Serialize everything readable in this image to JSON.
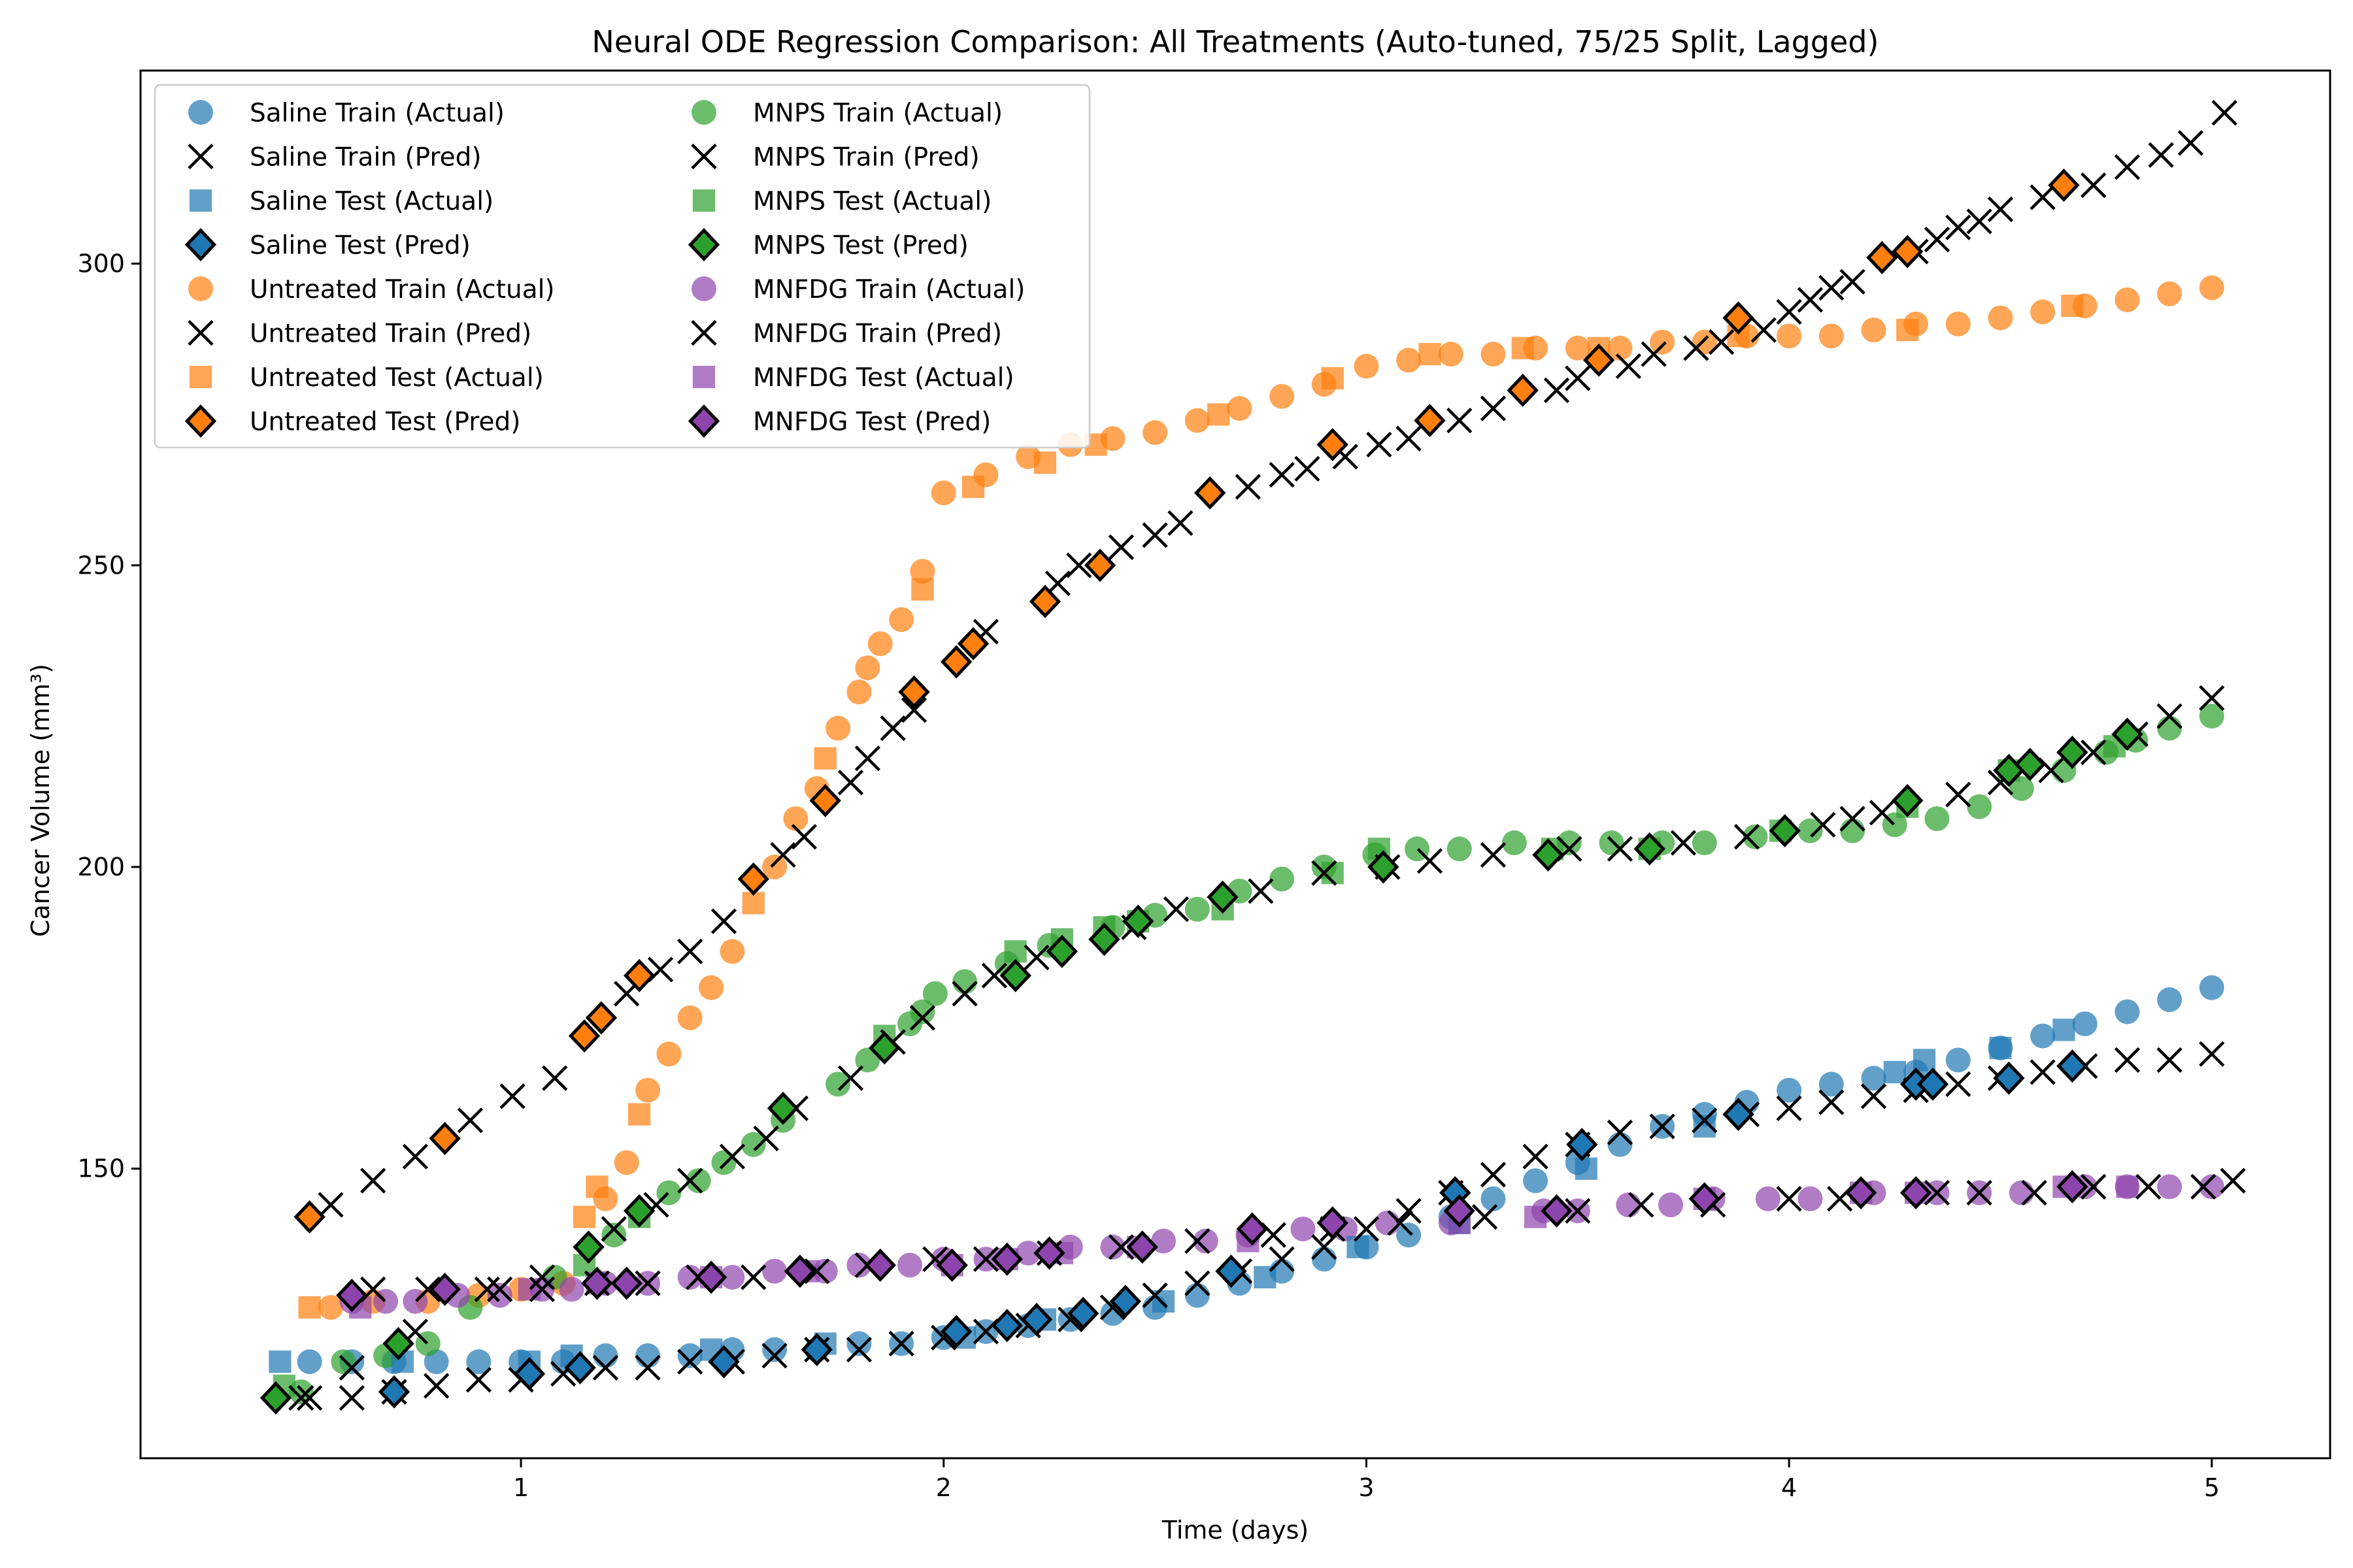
{
  "chart_data": {
    "type": "scatter",
    "title": "Neural ODE Regression Comparison: All Treatments (Auto-tuned, 75/25 Split, Lagged)",
    "xlabel": "Time (days)",
    "ylabel": "Cancer Volume (mm³)",
    "xlim": [
      0.1,
      5.28
    ],
    "ylim": [
      102,
      332
    ],
    "xticks": [
      1,
      2,
      3,
      4,
      5
    ],
    "yticks": [
      150,
      200,
      250,
      300
    ],
    "grid": false,
    "legend_location": "top-left",
    "legend_columns": 2,
    "colors": {
      "saline": "#1f77b4",
      "untreated": "#ff7f0e",
      "mnps": "#2ca02c",
      "mnfdg": "#8e44ad",
      "pred_cross": "#000000"
    },
    "series": [
      {
        "name": "Saline Train (Actual)",
        "group": "saline",
        "marker": "circle",
        "x": [
          0.5,
          0.6,
          0.7,
          0.8,
          0.9,
          1.0,
          1.1,
          1.2,
          1.3,
          1.4,
          1.5,
          1.6,
          1.7,
          1.8,
          1.9,
          2.0,
          2.1,
          2.2,
          2.3,
          2.4,
          2.5,
          2.6,
          2.7,
          2.8,
          2.9,
          3.0,
          3.1,
          3.2,
          3.3,
          3.4,
          3.5,
          3.6,
          3.7,
          3.8,
          3.9,
          4.0,
          4.1,
          4.2,
          4.3,
          4.4,
          4.5,
          4.6,
          4.7,
          4.8,
          4.9,
          5.0
        ],
        "y": [
          118,
          118,
          118,
          118,
          118,
          118,
          118,
          119,
          119,
          119,
          120,
          120,
          120,
          121,
          121,
          122,
          123,
          124,
          125,
          126,
          127,
          129,
          131,
          133,
          135,
          137,
          139,
          142,
          145,
          148,
          151,
          154,
          157,
          159,
          161,
          163,
          164,
          165,
          166,
          168,
          170,
          172,
          174,
          176,
          178,
          180
        ]
      },
      {
        "name": "Saline Train (Pred)",
        "group": "saline",
        "marker": "x",
        "x": [
          0.5,
          0.6,
          0.7,
          0.8,
          0.9,
          1.0,
          1.1,
          1.2,
          1.3,
          1.4,
          1.5,
          1.6,
          1.7,
          1.8,
          1.9,
          2.0,
          2.1,
          2.2,
          2.3,
          2.4,
          2.5,
          2.6,
          2.7,
          2.8,
          2.9,
          3.0,
          3.1,
          3.2,
          3.3,
          3.4,
          3.5,
          3.6,
          3.7,
          3.8,
          3.9,
          4.0,
          4.1,
          4.2,
          4.3,
          4.4,
          4.5,
          4.6,
          4.7,
          4.8,
          4.9,
          5.0
        ],
        "y": [
          112,
          112,
          113,
          114,
          115,
          115,
          116,
          117,
          117,
          118,
          118,
          119,
          120,
          120,
          121,
          122,
          123,
          124,
          125,
          127,
          129,
          131,
          133,
          135,
          137,
          140,
          143,
          146,
          149,
          152,
          154,
          156,
          157,
          158,
          159,
          160,
          161,
          162,
          163,
          164,
          165,
          166,
          167,
          168,
          168,
          169
        ]
      },
      {
        "name": "Saline Test (Actual)",
        "group": "saline",
        "marker": "square",
        "x": [
          0.43,
          0.72,
          1.02,
          1.12,
          1.45,
          1.72,
          2.05,
          2.24,
          2.52,
          2.76,
          2.98,
          3.22,
          3.52,
          3.8,
          4.25,
          4.32,
          4.5,
          4.65
        ],
        "y": [
          118,
          118,
          118,
          119,
          120,
          121,
          122,
          125,
          128,
          132,
          137,
          141,
          150,
          157,
          166,
          168,
          170,
          173
        ]
      },
      {
        "name": "Saline Test (Pred)",
        "group": "saline",
        "marker": "diamond",
        "x": [
          0.7,
          1.02,
          1.14,
          1.48,
          1.7,
          2.03,
          2.15,
          2.22,
          2.33,
          2.43,
          2.68,
          3.21,
          3.51,
          3.88,
          4.3,
          4.34,
          4.52,
          4.67
        ],
        "y": [
          113,
          116,
          117,
          118,
          120,
          123,
          124,
          125,
          126,
          128,
          133,
          146,
          154,
          159,
          164,
          164,
          165,
          167
        ]
      },
      {
        "name": "Untreated Train (Actual)",
        "group": "untreated",
        "marker": "circle",
        "x": [
          0.55,
          0.65,
          0.78,
          0.9,
          1.0,
          1.1,
          1.2,
          1.25,
          1.3,
          1.35,
          1.4,
          1.45,
          1.5,
          1.6,
          1.65,
          1.7,
          1.75,
          1.8,
          1.82,
          1.85,
          1.9,
          1.95,
          2.0,
          2.1,
          2.2,
          2.3,
          2.4,
          2.5,
          2.6,
          2.7,
          2.8,
          2.9,
          3.0,
          3.1,
          3.2,
          3.3,
          3.4,
          3.5,
          3.6,
          3.7,
          3.8,
          3.9,
          4.0,
          4.1,
          4.2,
          4.3,
          4.4,
          4.5,
          4.6,
          4.7,
          4.8,
          4.9,
          5.0
        ],
        "y": [
          127,
          128,
          128,
          129,
          130,
          131,
          145,
          151,
          163,
          169,
          175,
          180,
          186,
          200,
          208,
          213,
          223,
          229,
          233,
          237,
          241,
          249,
          262,
          265,
          268,
          270,
          271,
          272,
          274,
          276,
          278,
          280,
          283,
          284,
          285,
          285,
          286,
          286,
          286,
          287,
          287,
          288,
          288,
          288,
          289,
          290,
          290,
          291,
          292,
          293,
          294,
          295,
          296
        ]
      },
      {
        "name": "Untreated Train (Pred)",
        "group": "untreated",
        "marker": "x",
        "x": [
          0.55,
          0.65,
          0.75,
          0.88,
          0.98,
          1.08,
          1.25,
          1.33,
          1.4,
          1.48,
          1.62,
          1.67,
          1.78,
          1.82,
          1.88,
          1.93,
          2.1,
          2.27,
          2.32,
          2.42,
          2.5,
          2.56,
          2.72,
          2.8,
          2.86,
          2.95,
          3.03,
          3.1,
          3.22,
          3.3,
          3.45,
          3.5,
          3.62,
          3.68,
          3.78,
          3.84,
          3.94,
          4.0,
          4.05,
          4.1,
          4.15,
          4.3,
          4.35,
          4.4,
          4.45,
          4.5,
          4.6,
          4.72,
          4.8,
          4.88,
          4.95,
          5.03
        ],
        "y": [
          144,
          148,
          152,
          158,
          162,
          165,
          179,
          183,
          186,
          191,
          202,
          205,
          214,
          218,
          223,
          226,
          239,
          247,
          250,
          253,
          255,
          257,
          263,
          265,
          266,
          268,
          270,
          271,
          274,
          276,
          279,
          281,
          283,
          285,
          286,
          287,
          289,
          292,
          294,
          296,
          297,
          302,
          304,
          306,
          307,
          309,
          311,
          313,
          316,
          318,
          320,
          325
        ]
      },
      {
        "name": "Untreated Test (Actual)",
        "group": "untreated",
        "marker": "square",
        "x": [
          0.5,
          1.15,
          1.18,
          1.28,
          1.55,
          1.72,
          1.95,
          2.07,
          2.24,
          2.36,
          2.65,
          2.92,
          3.15,
          3.37,
          3.55,
          3.88,
          4.28,
          4.67
        ],
        "y": [
          127,
          142,
          147,
          159,
          194,
          218,
          246,
          263,
          267,
          270,
          275,
          281,
          285,
          286,
          286,
          288,
          289,
          293
        ]
      },
      {
        "name": "Untreated Test (Pred)",
        "group": "untreated",
        "marker": "diamond",
        "x": [
          0.5,
          0.82,
          1.15,
          1.19,
          1.28,
          1.55,
          1.72,
          1.93,
          2.03,
          2.07,
          2.24,
          2.37,
          2.63,
          2.92,
          3.15,
          3.37,
          3.55,
          3.88,
          4.22,
          4.28,
          4.65
        ],
        "y": [
          142,
          155,
          172,
          175,
          182,
          198,
          211,
          229,
          234,
          237,
          244,
          250,
          262,
          270,
          274,
          279,
          284,
          291,
          301,
          302,
          313
        ]
      },
      {
        "name": "MNPS Train (Actual)",
        "group": "mnps",
        "marker": "circle",
        "x": [
          0.48,
          0.58,
          0.68,
          0.78,
          0.88,
          1.08,
          1.22,
          1.35,
          1.42,
          1.48,
          1.55,
          1.62,
          1.75,
          1.82,
          1.92,
          1.95,
          1.98,
          2.05,
          2.15,
          2.25,
          2.4,
          2.5,
          2.6,
          2.7,
          2.8,
          2.9,
          3.02,
          3.12,
          3.22,
          3.35,
          3.48,
          3.58,
          3.7,
          3.8,
          3.92,
          4.05,
          4.15,
          4.25,
          4.35,
          4.45,
          4.55,
          4.65,
          4.75,
          4.82,
          4.9,
          5.0
        ],
        "y": [
          113,
          118,
          119,
          121,
          127,
          132,
          139,
          146,
          148,
          151,
          154,
          158,
          164,
          168,
          174,
          176,
          179,
          181,
          184,
          187,
          190,
          192,
          193,
          196,
          198,
          200,
          202,
          203,
          203,
          204,
          204,
          204,
          204,
          204,
          205,
          206,
          206,
          207,
          208,
          210,
          213,
          216,
          219,
          221,
          223,
          225
        ]
      },
      {
        "name": "MNPS Train (Pred)",
        "group": "mnps",
        "marker": "x",
        "x": [
          0.48,
          0.6,
          0.75,
          0.95,
          1.05,
          1.22,
          1.32,
          1.4,
          1.5,
          1.58,
          1.65,
          1.78,
          1.88,
          1.95,
          2.05,
          2.12,
          2.22,
          2.45,
          2.55,
          2.75,
          2.9,
          3.05,
          3.15,
          3.3,
          3.48,
          3.6,
          3.75,
          3.9,
          4.08,
          4.15,
          4.22,
          4.4,
          4.5,
          4.62,
          4.72,
          4.82,
          4.9,
          5.0
        ],
        "y": [
          112,
          117,
          123,
          130,
          132,
          140,
          144,
          148,
          152,
          155,
          160,
          165,
          171,
          175,
          179,
          182,
          185,
          190,
          193,
          196,
          199,
          200,
          201,
          202,
          203,
          203,
          204,
          205,
          207,
          208,
          209,
          212,
          214,
          216,
          219,
          222,
          225,
          228
        ]
      },
      {
        "name": "MNPS Test (Actual)",
        "group": "mnps",
        "marker": "square",
        "x": [
          0.44,
          1.15,
          1.28,
          1.86,
          2.17,
          2.28,
          2.38,
          2.46,
          2.66,
          2.92,
          3.03,
          3.44,
          3.67,
          3.98,
          4.28,
          4.52,
          4.77
        ],
        "y": [
          114,
          134,
          142,
          172,
          186,
          188,
          190,
          191,
          193,
          199,
          203,
          203,
          203,
          206,
          210,
          216,
          220
        ]
      },
      {
        "name": "MNPS Test (Pred)",
        "group": "mnps",
        "marker": "diamond",
        "x": [
          0.42,
          0.71,
          1.16,
          1.28,
          1.62,
          1.86,
          2.17,
          2.28,
          2.38,
          2.46,
          2.66,
          3.04,
          3.43,
          3.67,
          3.99,
          4.28,
          4.52,
          4.57,
          4.67,
          4.8
        ],
        "y": [
          112,
          121,
          137,
          143,
          160,
          170,
          182,
          186,
          188,
          191,
          195,
          200,
          202,
          203,
          206,
          211,
          216,
          217,
          219,
          222
        ]
      },
      {
        "name": "MNFDG Train (Actual)",
        "group": "mnfdg",
        "marker": "circle",
        "x": [
          0.6,
          0.68,
          0.75,
          0.85,
          0.95,
          1.05,
          1.12,
          1.2,
          1.3,
          1.4,
          1.5,
          1.6,
          1.72,
          1.8,
          1.92,
          2.0,
          2.1,
          2.2,
          2.3,
          2.4,
          2.52,
          2.62,
          2.72,
          2.85,
          2.95,
          3.05,
          3.2,
          3.42,
          3.5,
          3.62,
          3.72,
          3.82,
          3.95,
          4.05,
          4.2,
          4.35,
          4.45,
          4.55,
          4.7,
          4.8,
          4.9,
          5.0
        ],
        "y": [
          128,
          128,
          128,
          129,
          129,
          130,
          130,
          131,
          131,
          132,
          132,
          133,
          133,
          134,
          134,
          135,
          135,
          136,
          137,
          137,
          138,
          138,
          139,
          140,
          140,
          141,
          141,
          143,
          143,
          144,
          144,
          145,
          145,
          145,
          146,
          146,
          146,
          146,
          147,
          147,
          147,
          147
        ]
      },
      {
        "name": "MNFDG Train (Pred)",
        "group": "mnfdg",
        "marker": "x",
        "x": [
          0.65,
          0.78,
          0.92,
          1.05,
          1.18,
          1.3,
          1.42,
          1.55,
          1.7,
          1.82,
          1.98,
          2.1,
          2.25,
          2.42,
          2.6,
          2.78,
          2.92,
          3.08,
          3.28,
          3.5,
          3.65,
          3.82,
          4.0,
          4.12,
          4.35,
          4.45,
          4.58,
          4.72,
          4.85,
          4.98,
          5.05
        ],
        "y": [
          130,
          130,
          130,
          130,
          131,
          131,
          132,
          132,
          133,
          134,
          135,
          135,
          136,
          137,
          138,
          139,
          140,
          141,
          142,
          143,
          144,
          144,
          145,
          145,
          146,
          146,
          146,
          147,
          147,
          147,
          148
        ]
      },
      {
        "name": "MNFDG Test (Actual)",
        "group": "mnfdg",
        "marker": "square",
        "x": [
          0.62,
          1.02,
          1.18,
          1.45,
          1.68,
          2.02,
          2.15,
          2.28,
          2.46,
          2.72,
          3.22,
          3.4,
          3.8,
          4.17,
          4.3,
          4.65,
          4.8
        ],
        "y": [
          127,
          130,
          131,
          132,
          133,
          134,
          135,
          136,
          137,
          138,
          141,
          142,
          145,
          146,
          146,
          147,
          147
        ]
      },
      {
        "name": "MNFDG Test (Pred)",
        "group": "mnfdg",
        "marker": "diamond",
        "x": [
          0.6,
          0.82,
          1.18,
          1.25,
          1.45,
          1.66,
          1.85,
          2.02,
          2.15,
          2.25,
          2.47,
          2.73,
          2.92,
          3.22,
          3.45,
          3.8,
          4.17,
          4.3,
          4.67
        ],
        "y": [
          129,
          130,
          131,
          131,
          132,
          133,
          134,
          134,
          135,
          136,
          137,
          140,
          141,
          143,
          143,
          145,
          146,
          146,
          147
        ]
      }
    ],
    "legend_entries": [
      "Saline Train (Actual)",
      "MNPS Train (Actual)",
      "Saline Train (Pred)",
      "MNPS Train (Pred)",
      "Saline Test (Actual)",
      "MNPS Test (Actual)",
      "Saline Test (Pred)",
      "MNPS Test (Pred)",
      "Untreated Train (Actual)",
      "MNFDG Train (Actual)",
      "Untreated Train (Pred)",
      "MNFDG Train (Pred)",
      "Untreated Test (Actual)",
      "MNFDG Test (Actual)",
      "Untreated Test (Pred)",
      "MNFDG Test (Pred)"
    ]
  }
}
